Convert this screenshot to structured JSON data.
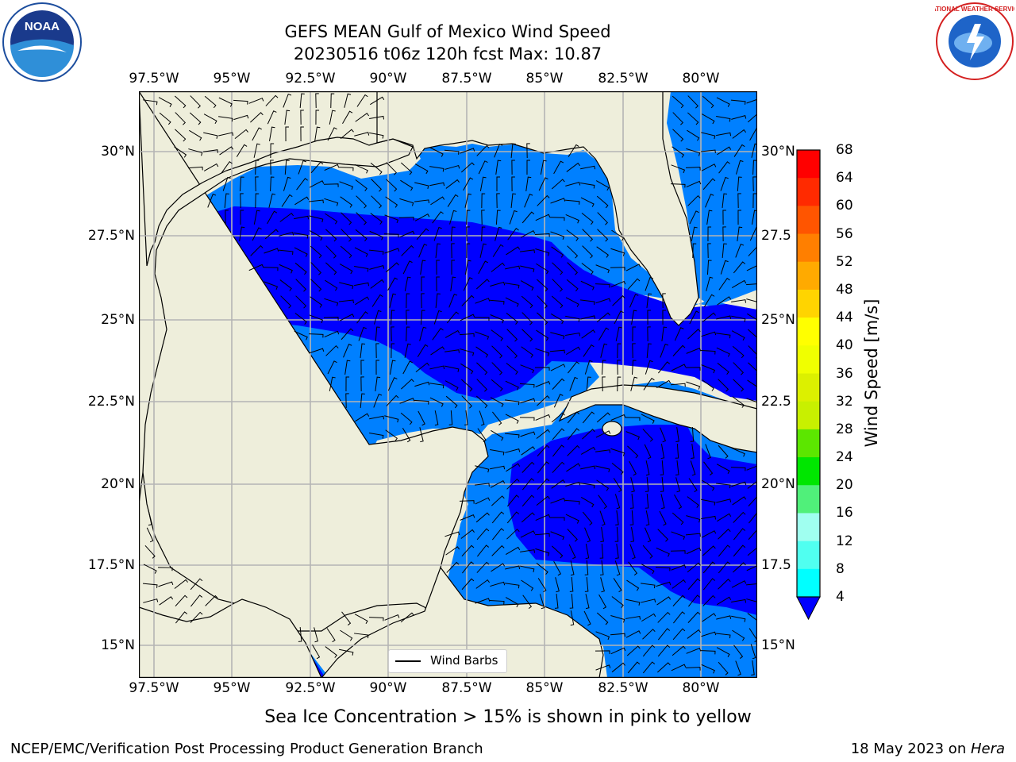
{
  "title": {
    "line1": "GEFS MEAN Gulf of Mexico Wind Speed",
    "line2": "20230516 t06z 120h fcst   Max: 10.87"
  },
  "lon_ticks": [
    "97.5°W",
    "95°W",
    "92.5°W",
    "90°W",
    "87.5°W",
    "85°W",
    "82.5°W",
    "80°W"
  ],
  "lat_ticks_left": [
    "30°N",
    "27.5°N",
    "25°N",
    "22.5°N",
    "20°N",
    "17.5°N",
    "15°N"
  ],
  "lat_ticks_right": [
    "30°N",
    "27.5",
    "25°N",
    "22.5",
    "20°N",
    "17.5",
    "15°N"
  ],
  "colorbar": {
    "label": "Wind Speed [m/s]",
    "ticks": [
      "68",
      "64",
      "60",
      "56",
      "52",
      "48",
      "44",
      "40",
      "36",
      "32",
      "28",
      "24",
      "20",
      "16",
      "12",
      "8",
      "4"
    ],
    "colors": [
      "#ff0000",
      "#ff2a00",
      "#ff5500",
      "#ff7f00",
      "#ffaa00",
      "#ffd400",
      "#ffff00",
      "#f0ff00",
      "#dcf000",
      "#c8f000",
      "#5ce600",
      "#00e600",
      "#50f07a",
      "#a0fff0",
      "#50fff0",
      "#00ffff",
      "#0080ff"
    ],
    "extend_color": "#0000ff"
  },
  "legend": {
    "label": "Wind Barbs"
  },
  "footer": {
    "note": "Sea Ice Concentration > 15% is shown in pink to yellow",
    "left": "NCEP/EMC/Verification Post Processing Product Generation Branch",
    "date": "18 May 2023 on ",
    "machine": "Hera"
  },
  "logos": {
    "left": "NOAA",
    "right": "NATIONAL WEATHER SERVICE"
  },
  "colors": {
    "land": "#eeeedb",
    "grid": "#b4b4b4",
    "speed_4_8": "#0080ff",
    "speed_0_4": "#0000ff",
    "speed_8_12": "#00ffff"
  }
}
